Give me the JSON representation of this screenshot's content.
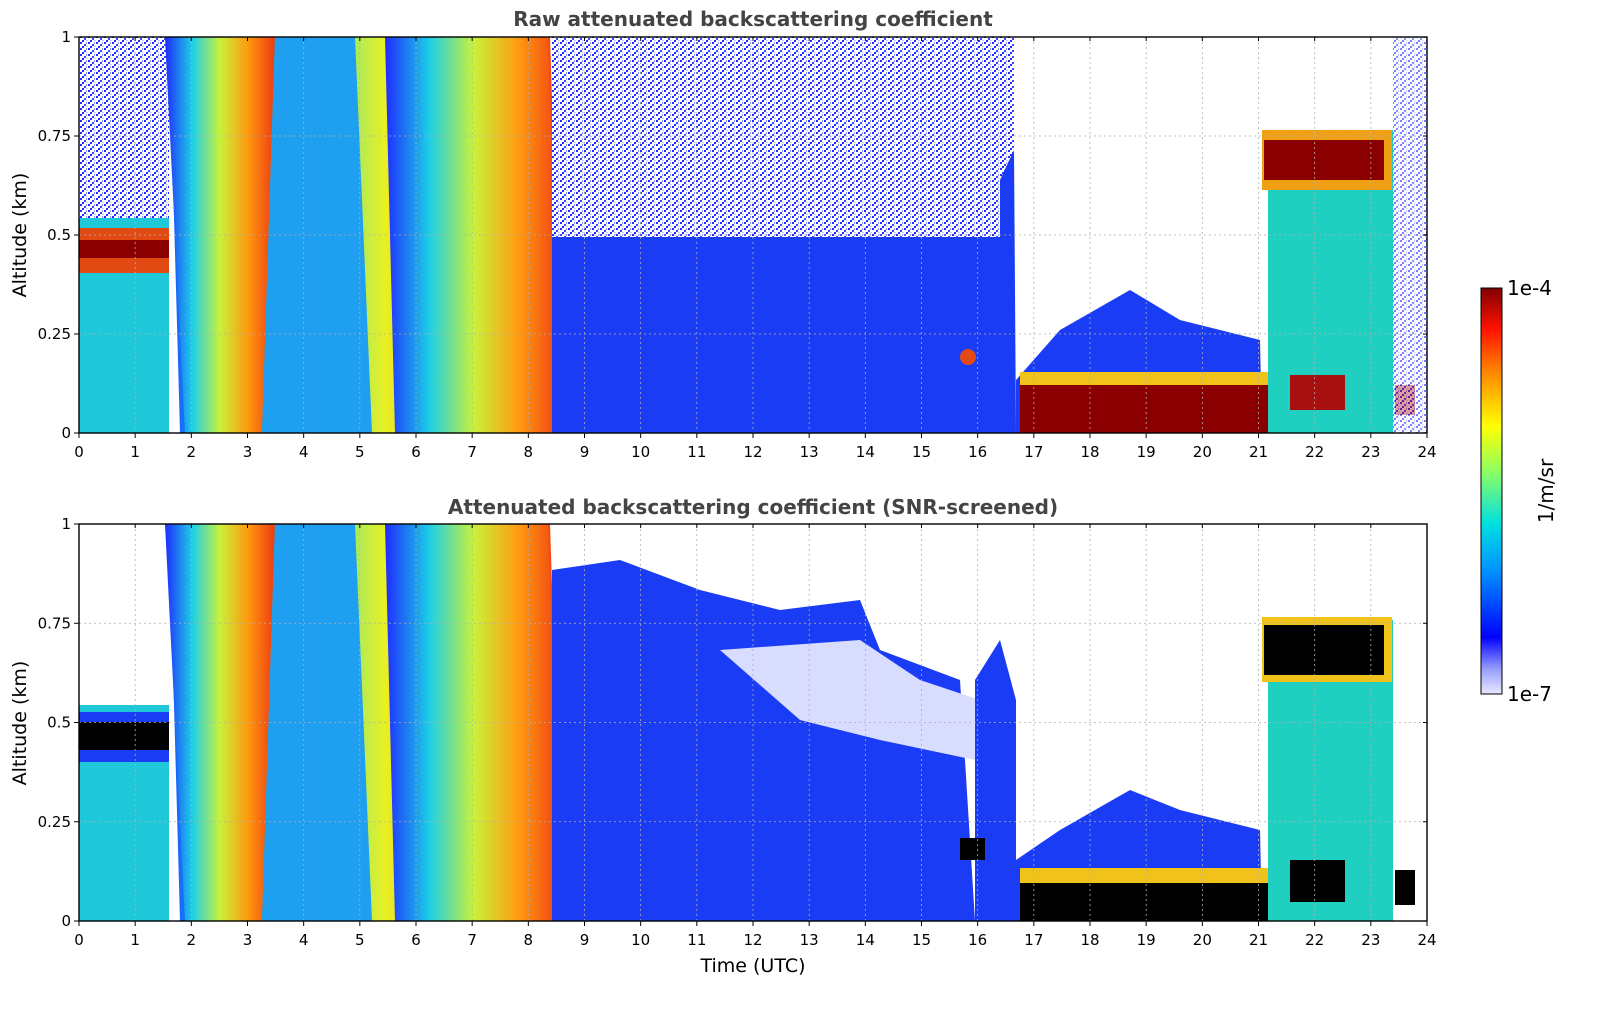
{
  "chart_data": [
    {
      "type": "heatmap",
      "title": "Raw attenuated backscattering coefficient",
      "xlabel": "",
      "ylabel": "Altitude (km)",
      "xlim": [
        0,
        24
      ],
      "ylim": [
        0,
        1
      ],
      "xticks": [
        "0",
        "1",
        "2",
        "3",
        "4",
        "5",
        "6",
        "7",
        "8",
        "9",
        "10",
        "11",
        "12",
        "13",
        "14",
        "15",
        "16",
        "17",
        "18",
        "19",
        "20",
        "21",
        "22",
        "23",
        "24"
      ],
      "yticks": [
        "0",
        "0.25",
        "0.5",
        "0.75",
        "1"
      ],
      "grid": true,
      "colormap": "jet",
      "features": [
        {
          "x": [
            0,
            1.6
          ],
          "y": [
            0.4,
            0.5
          ],
          "level": "high",
          "label": "aerosol layer"
        },
        {
          "x": [
            1.6,
            8.6
          ],
          "y": [
            0,
            1
          ],
          "level": "high",
          "label": "slanted fall streaks"
        },
        {
          "x": [
            8.6,
            16.7
          ],
          "y": [
            0,
            1
          ],
          "level": "low",
          "label": "noisy background"
        },
        {
          "x": [
            16.7,
            21.2
          ],
          "y": [
            0.02,
            0.1
          ],
          "level": "saturated",
          "label": "fog layer"
        },
        {
          "x": [
            21.2,
            23.2
          ],
          "y": [
            0.62,
            0.73
          ],
          "level": "saturated",
          "label": "cloud layer"
        }
      ]
    },
    {
      "type": "heatmap",
      "title": "Attenuated backscattering coefficient (SNR-screened)",
      "xlabel": "Time (UTC)",
      "ylabel": "Altitude (km)",
      "xlim": [
        0,
        24
      ],
      "ylim": [
        0,
        1
      ],
      "xticks": [
        "0",
        "1",
        "2",
        "3",
        "4",
        "5",
        "6",
        "7",
        "8",
        "9",
        "10",
        "11",
        "12",
        "13",
        "14",
        "15",
        "16",
        "17",
        "18",
        "19",
        "20",
        "21",
        "22",
        "23",
        "24"
      ],
      "yticks": [
        "0",
        "0.25",
        "0.5",
        "0.75",
        "1"
      ],
      "grid": true,
      "colormap": "jet",
      "features": [
        {
          "x": [
            0,
            1.6
          ],
          "y": [
            0.4,
            0.5
          ],
          "level": "saturated",
          "label": "aerosol layer"
        },
        {
          "x": [
            1.6,
            8.6
          ],
          "y": [
            0,
            1
          ],
          "level": "high",
          "label": "slanted fall streaks"
        },
        {
          "x": [
            8.6,
            16.7
          ],
          "y": [
            0,
            0.85
          ],
          "level": "low",
          "label": "screened background"
        },
        {
          "x": [
            16.7,
            21.2
          ],
          "y": [
            0.02,
            0.1
          ],
          "level": "saturated",
          "label": "fog layer"
        },
        {
          "x": [
            21.2,
            23.2
          ],
          "y": [
            0.62,
            0.73
          ],
          "level": "saturated",
          "label": "cloud layer"
        }
      ]
    }
  ],
  "colorbar": {
    "label": "1/m/sr",
    "max_label": "1e-4",
    "min_label": "1e-7",
    "range": [
      1e-07,
      0.0001
    ],
    "scale": "log"
  }
}
